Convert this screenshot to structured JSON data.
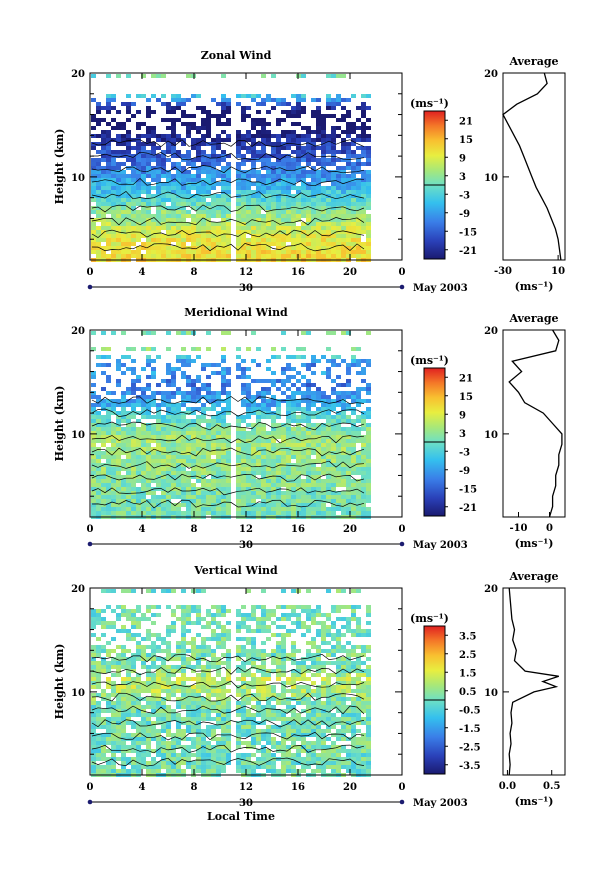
{
  "chart_data": [
    {
      "type": "heatmap",
      "title": "Zonal Wind",
      "ylabel": "Height (km)",
      "xlabel": "",
      "x_ticks": [
        "0",
        "4",
        "8",
        "12",
        "16",
        "20",
        "0"
      ],
      "y_ticks": [
        "10",
        "20"
      ],
      "xlim": [
        0,
        24
      ],
      "ylim": [
        2,
        20
      ],
      "date_axis": {
        "day_label": "30",
        "month_label": "May 2003"
      },
      "colorbar": {
        "unit_label": "(ms⁻¹)",
        "range": [
          -24,
          24
        ],
        "ticks": [
          "21",
          "15",
          "9",
          "3",
          "-3",
          "-9",
          "-15",
          "-21"
        ]
      },
      "profile": {
        "title": "Average",
        "xlabel": "(ms⁻¹)",
        "x_ticks": [
          "-30",
          "10"
        ],
        "xlim": [
          -30,
          15
        ],
        "y_ticks": [
          "10",
          "20"
        ],
        "heights": [
          2,
          3,
          4,
          5,
          6,
          7,
          8,
          9,
          10,
          11,
          12,
          13,
          14,
          15,
          16,
          17,
          18,
          19,
          20
        ],
        "values": [
          12,
          11,
          10,
          8,
          5,
          2,
          -2,
          -6,
          -9,
          -12,
          -15,
          -18,
          -22,
          -26,
          -30,
          -20,
          -5,
          2,
          0
        ]
      }
    },
    {
      "type": "heatmap",
      "title": "Meridional Wind",
      "ylabel": "Height (km)",
      "xlabel": "",
      "x_ticks": [
        "0",
        "4",
        "8",
        "12",
        "16",
        "20",
        "0"
      ],
      "y_ticks": [
        "10",
        "20"
      ],
      "xlim": [
        0,
        24
      ],
      "ylim": [
        2,
        20
      ],
      "date_axis": {
        "day_label": "30",
        "month_label": "May 2003"
      },
      "colorbar": {
        "unit_label": "(ms⁻¹)",
        "range": [
          -24,
          24
        ],
        "ticks": [
          "21",
          "15",
          "9",
          "3",
          "-3",
          "-9",
          "-15",
          "-21"
        ]
      },
      "profile": {
        "title": "Average",
        "xlabel": "(ms⁻¹)",
        "x_ticks": [
          "-10",
          "0"
        ],
        "xlim": [
          -15,
          5
        ],
        "y_ticks": [
          "10",
          "20"
        ],
        "heights": [
          2,
          3,
          4,
          5,
          6,
          7,
          8,
          9,
          10,
          11,
          12,
          13,
          14,
          15,
          16,
          17,
          18,
          19,
          20
        ],
        "values": [
          0,
          1,
          1,
          2,
          2,
          3,
          3,
          4,
          4,
          1,
          -2,
          -8,
          -10,
          -13,
          -9,
          -12,
          2,
          3,
          1
        ]
      }
    },
    {
      "type": "heatmap",
      "title": "Vertical Wind",
      "ylabel": "Height (km)",
      "xlabel": "Local Time",
      "x_ticks": [
        "0",
        "4",
        "8",
        "12",
        "16",
        "20",
        "0"
      ],
      "y_ticks": [
        "10",
        "20"
      ],
      "xlim": [
        0,
        24
      ],
      "ylim": [
        2,
        20
      ],
      "date_axis": {
        "day_label": "30",
        "month_label": "May 2003"
      },
      "colorbar": {
        "unit_label": "(ms⁻¹)",
        "range": [
          -4,
          4
        ],
        "ticks": [
          "3.5",
          "2.5",
          "1.5",
          "0.5",
          "-0.5",
          "-1.5",
          "-2.5",
          "-3.5"
        ]
      },
      "profile": {
        "title": "Average",
        "xlabel": "(ms⁻¹)",
        "x_ticks": [
          "0.0",
          "0.5"
        ],
        "xlim": [
          -0.05,
          0.65
        ],
        "y_ticks": [
          "10",
          "20"
        ],
        "heights": [
          2,
          3,
          4,
          5,
          6,
          7,
          8,
          9,
          10,
          10.5,
          11,
          11.5,
          12,
          13,
          14,
          15,
          16,
          17,
          18,
          19,
          20
        ],
        "values": [
          0.02,
          0.03,
          0.02,
          0.04,
          0.03,
          0.05,
          0.04,
          0.06,
          0.3,
          0.55,
          0.4,
          0.58,
          0.2,
          0.08,
          0.1,
          0.06,
          0.08,
          0.05,
          0.04,
          0.03,
          0.02
        ]
      }
    }
  ]
}
